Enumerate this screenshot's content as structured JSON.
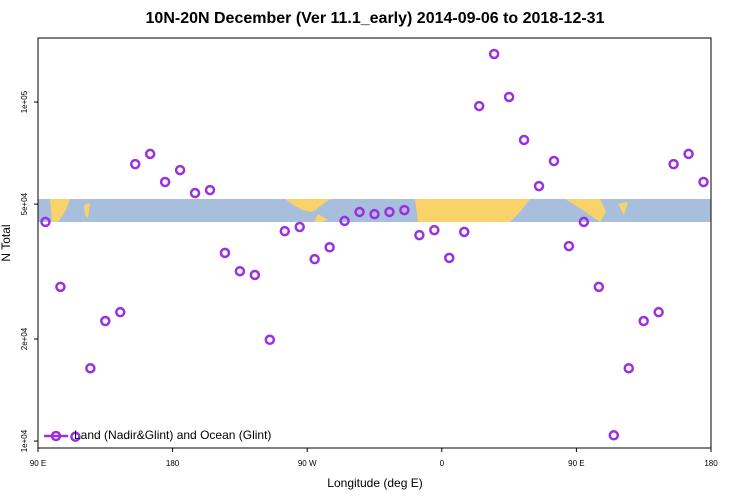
{
  "chart_data": {
    "type": "scatter",
    "title": "10N-20N December (Ver 11.1_early)   2014-09-06 to 2018-12-31",
    "x_label": "Longitude (deg E)",
    "y_label": "N Total",
    "log_y": true,
    "color": "#9b30e0",
    "legend_position": "bottom-left",
    "series": [
      {
        "name": "Land (Nadir&Glint) and Ocean (Glint)",
        "color": "#9b30e0",
        "x": [
          95,
          105,
          115,
          125,
          135,
          145,
          155,
          165,
          175,
          185,
          195,
          205,
          215,
          225,
          235,
          245,
          255,
          265,
          275,
          285,
          295,
          305,
          315,
          325,
          335,
          345,
          355,
          365,
          375,
          385,
          395,
          405,
          415,
          425,
          435,
          445,
          455,
          465,
          475,
          485,
          495,
          505,
          515,
          525,
          535
        ],
        "values": [
          44300,
          28500,
          10300,
          16400,
          22600,
          24000,
          65600,
          70300,
          58100,
          63000,
          53900,
          55000,
          35900,
          31700,
          30900,
          19900,
          41600,
          42800,
          34400,
          37300,
          44600,
          47400,
          46700,
          47400,
          48000,
          40500,
          41900,
          34700,
          41400,
          97300,
          138600,
          103500,
          77300,
          56500,
          67000,
          37600,
          44300,
          28500,
          10400,
          16400,
          22600,
          24000,
          65600,
          70300,
          58100
        ]
      }
    ],
    "xlim": [
      90,
      540
    ],
    "xticks": [
      {
        "value": 90,
        "label": "90 E"
      },
      {
        "value": 180,
        "label": "180"
      },
      {
        "value": 270,
        "label": "90 W"
      },
      {
        "value": 360,
        "label": "0"
      },
      {
        "value": 450,
        "label": "90 E"
      },
      {
        "value": 540,
        "label": "180"
      }
    ],
    "ylim": [
      9540,
      154500
    ],
    "yticks": [
      {
        "value": 10000,
        "label": "1e+04"
      },
      {
        "value": 20000,
        "label": "2e+04"
      },
      {
        "value": 50000,
        "label": "5e+04"
      },
      {
        "value": 100000,
        "label": "1e+05"
      }
    ]
  }
}
